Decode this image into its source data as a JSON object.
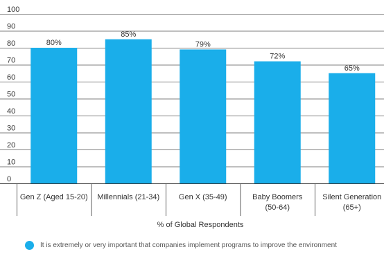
{
  "chart_data": {
    "type": "bar",
    "categories": [
      [
        "Gen Z (Aged 15-20)"
      ],
      [
        "Millennials (21-34)"
      ],
      [
        "Gen X (35-49)"
      ],
      [
        "Baby Boomers",
        "(50-64)"
      ],
      [
        "Silent Generation",
        "(65+)"
      ]
    ],
    "values": [
      80,
      85,
      79,
      72,
      65
    ],
    "data_labels": [
      "80%",
      "85%",
      "79%",
      "72%",
      "65%"
    ],
    "yticks": [
      0,
      10,
      20,
      30,
      40,
      50,
      60,
      70,
      80,
      90,
      100
    ],
    "ylim": [
      0,
      100
    ],
    "xlabel": "% of Global Respondents",
    "grid": true,
    "legend_position": "bottom",
    "series": [
      {
        "name": "It is extremely or very important that companies implement programs to improve the environment",
        "color": "#1aaeea"
      }
    ]
  }
}
